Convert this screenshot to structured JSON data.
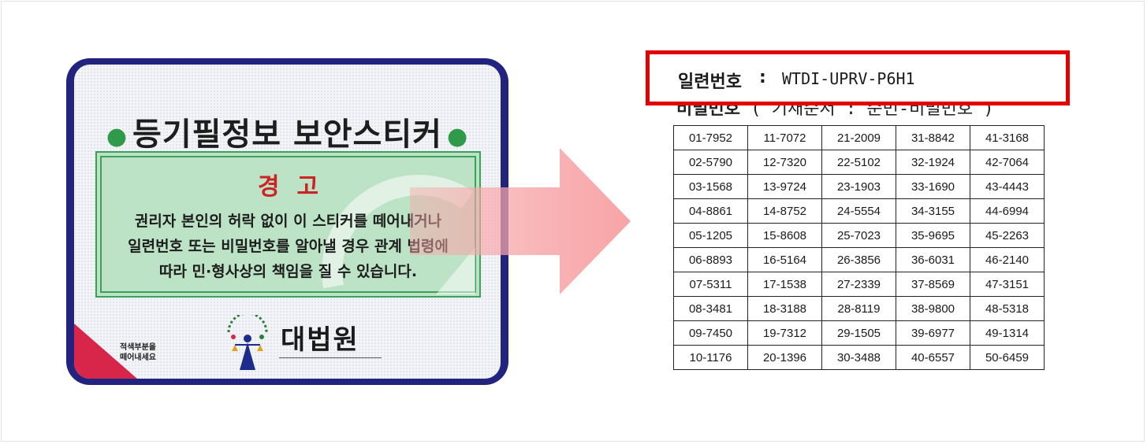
{
  "sticker": {
    "title": "등기필정보 보안스티커",
    "warning_title": "경고",
    "warning_lines": [
      "권리자 본인의 허락 없이 이 스티커를 떼어내거나",
      "일련번호 또는 비밀번호를 알아낼 경우 관계 법령에",
      "따라 민·형사상의 책임을 질 수 있습니다."
    ],
    "court_name": "대법원",
    "corner_text": [
      "적색부분을",
      "떼어내세요"
    ]
  },
  "sheet": {
    "serial_label": "일련번호",
    "serial_colon": ":",
    "serial_value": "WTDI-UPRV-P6H1",
    "password_heading": "비밀번호",
    "password_note": "( 기재순서 : 순번-비밀번호 )",
    "rows": [
      [
        "01-7952",
        "11-7072",
        "21-2009",
        "31-8842",
        "41-3168"
      ],
      [
        "02-5790",
        "12-7320",
        "22-5102",
        "32-1924",
        "42-7064"
      ],
      [
        "03-1568",
        "13-9724",
        "23-1903",
        "33-1690",
        "43-4443"
      ],
      [
        "04-8861",
        "14-8752",
        "24-5554",
        "34-3155",
        "44-6994"
      ],
      [
        "05-1205",
        "15-8608",
        "25-7023",
        "35-9695",
        "45-2263"
      ],
      [
        "06-8893",
        "16-5164",
        "26-3856",
        "36-6031",
        "46-2140"
      ],
      [
        "07-5311",
        "17-1538",
        "27-2339",
        "37-8569",
        "47-3151"
      ],
      [
        "08-3481",
        "18-3188",
        "28-8119",
        "38-9800",
        "48-5318"
      ],
      [
        "09-7450",
        "19-7312",
        "29-1505",
        "39-6977",
        "49-1314"
      ],
      [
        "10-1176",
        "20-1396",
        "30-3488",
        "40-6557",
        "50-6459"
      ]
    ]
  },
  "colors": {
    "highlight": "#e30000",
    "arrow": "#f7a7a9",
    "sticker_border": "#22237e",
    "warning_green": "#bde3c6"
  }
}
